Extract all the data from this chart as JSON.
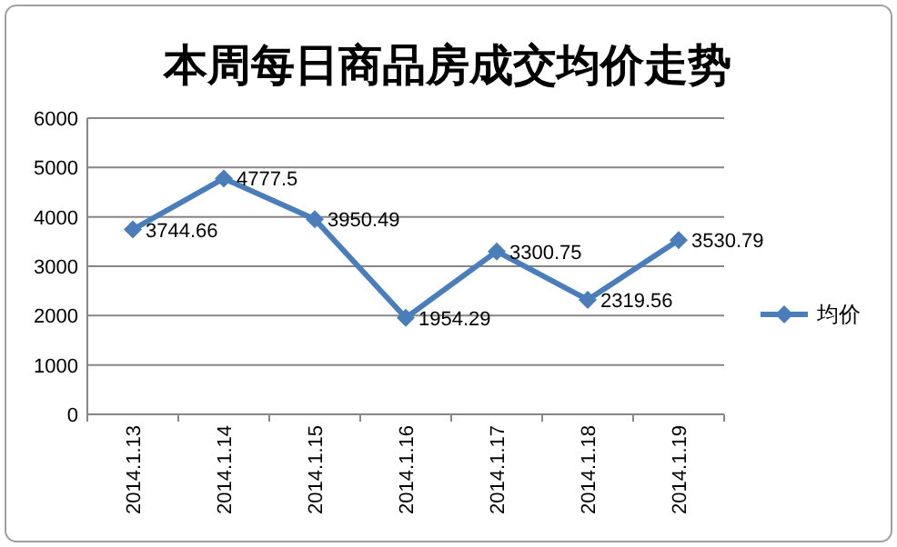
{
  "chart_data": {
    "type": "line",
    "title": "本周每日商品房成交均价走势",
    "categories": [
      "2014.1.13",
      "2014.1.14",
      "2014.1.15",
      "2014.1.16",
      "2014.1.17",
      "2014.1.18",
      "2014.1.19"
    ],
    "series": [
      {
        "name": "均价",
        "color": "#4a7ebb",
        "values": [
          3744.66,
          4777.5,
          3950.49,
          1954.29,
          3300.75,
          2319.56,
          3530.79
        ]
      }
    ],
    "ylim": [
      0,
      6000
    ],
    "yticks": [
      0,
      1000,
      2000,
      3000,
      4000,
      5000,
      6000
    ],
    "grid": "y",
    "legend": "right",
    "marker": "diamond",
    "data_labels": true
  }
}
